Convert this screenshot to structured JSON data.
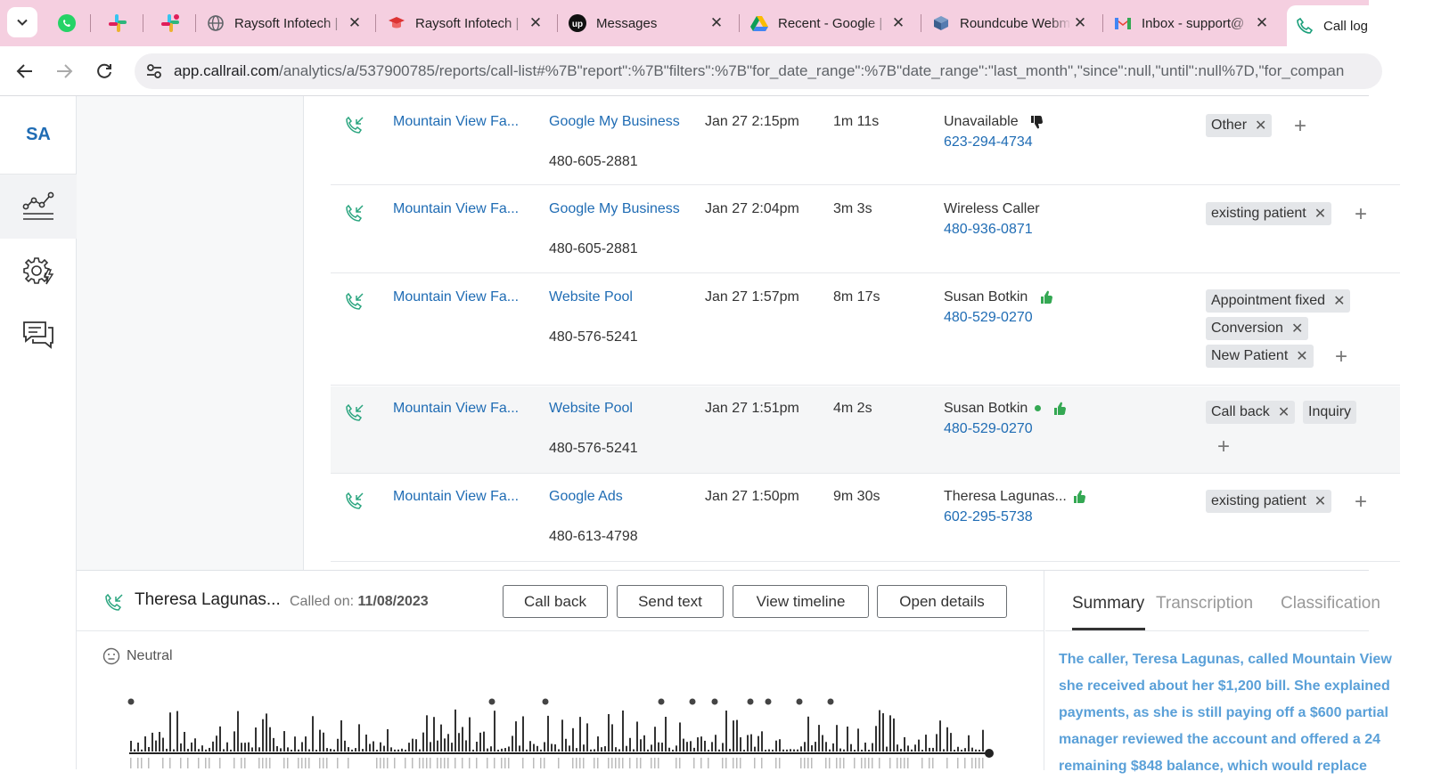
{
  "browser": {
    "tabs": [
      {
        "title": "Raysoft Infotech |"
      },
      {
        "title": "Raysoft Infotech |"
      },
      {
        "title": "Messages"
      },
      {
        "title": "Recent - Google |"
      },
      {
        "title": "Roundcube Webm"
      },
      {
        "title": "Inbox - support@"
      },
      {
        "title": "Call log"
      }
    ],
    "url_host": "app.callrail.com",
    "url_path": "/analytics/a/537900785/reports/call-list#%7B\"report\":%7B\"filters\":%7B\"for_date_range\":%7B\"date_range\":\"last_month\",\"since\":null,\"until\":null%7D,\"for_compan"
  },
  "sidebar": {
    "logo": "SA"
  },
  "calls": [
    {
      "company": "Mountain View Fa...",
      "source": "Google My Business",
      "tracking_number": "480-605-2881",
      "date": "Jan 27 2:15pm",
      "duration": "1m 11s",
      "caller_name": "Unavailable",
      "caller_phone": "623-294-4734",
      "rating": "down",
      "tags": [
        "Other"
      ]
    },
    {
      "company": "Mountain View Fa...",
      "source": "Google My Business",
      "tracking_number": "480-605-2881",
      "date": "Jan 27 2:04pm",
      "duration": "3m 3s",
      "caller_name": "Wireless Caller",
      "caller_phone": "480-936-0871",
      "rating": "",
      "tags": [
        "existing patient"
      ]
    },
    {
      "company": "Mountain View Fa...",
      "source": "Website Pool",
      "tracking_number": "480-576-5241",
      "date": "Jan 27 1:57pm",
      "duration": "8m 17s",
      "caller_name": "Susan Botkin",
      "caller_phone": "480-529-0270",
      "rating": "up",
      "tags": [
        "Appointment fixed",
        "Conversion",
        "New Patient"
      ]
    },
    {
      "company": "Mountain View Fa...",
      "source": "Website Pool",
      "tracking_number": "480-576-5241",
      "date": "Jan 27 1:51pm",
      "duration": "4m 2s",
      "caller_name": "Susan Botkin",
      "caller_phone": "480-529-0270",
      "rating": "up",
      "tags": [
        "Call back",
        "Inquiry"
      ]
    },
    {
      "company": "Mountain View Fa...",
      "source": "Google Ads",
      "tracking_number": "480-613-4798",
      "date": "Jan 27 1:50pm",
      "duration": "9m 30s",
      "caller_name": "Theresa Lagunas...",
      "caller_phone": "602-295-5738",
      "rating": "up",
      "tags": [
        "existing patient"
      ]
    }
  ],
  "detail": {
    "caller_name": "Theresa Lagunas...",
    "called_on_label": "Called on:",
    "called_on_date": "11/08/2023",
    "buttons": {
      "call_back": "Call back",
      "send_text": "Send text",
      "view_timeline": "View timeline",
      "open_details": "Open details"
    },
    "sentiment": "Neutral",
    "tabs": {
      "summary": "Summary",
      "transcription": "Transcription",
      "classification": "Classification"
    },
    "summary_lines": [
      "The caller, Teresa Lagunas, called Mountain View",
      "she received about her $1,200 bill. She explained",
      "payments, as she is still paying off a $600 partial",
      "manager reviewed the account and offered a 24",
      "remaining $848 balance, which would replace"
    ]
  },
  "colors": {
    "link": "#1f6cb4",
    "thumb_up": "#34a853",
    "tab_bar": "#f5cfe0",
    "summary_text": "#5aa0d8"
  }
}
